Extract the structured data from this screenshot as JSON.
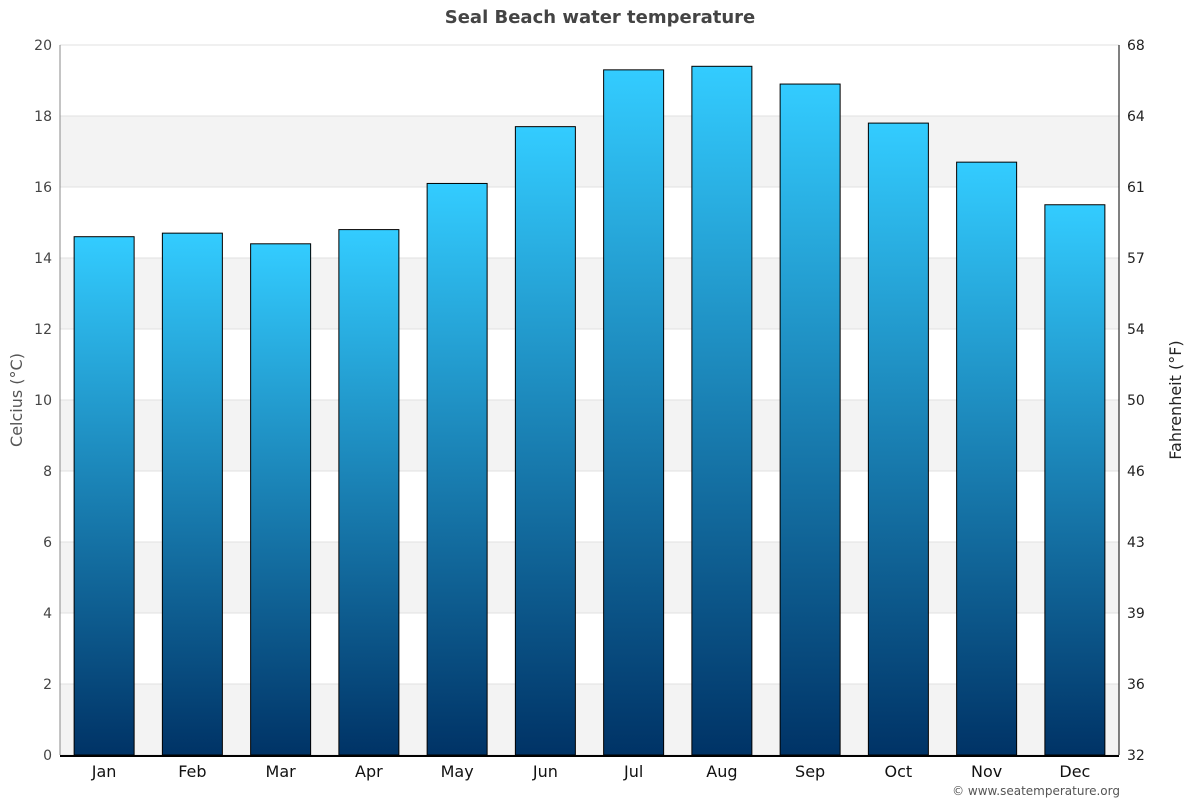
{
  "chart_data": {
    "type": "bar",
    "title": "Seal Beach water temperature",
    "categories": [
      "Jan",
      "Feb",
      "Mar",
      "Apr",
      "May",
      "Jun",
      "Jul",
      "Aug",
      "Sep",
      "Oct",
      "Nov",
      "Dec"
    ],
    "values": [
      14.6,
      14.7,
      14.4,
      14.8,
      16.1,
      17.7,
      19.3,
      19.4,
      18.9,
      17.8,
      16.7,
      15.5
    ],
    "ylabel": "Celcius (°C)",
    "y2label": "Fahrenheit (°F)",
    "ylim": [
      0,
      20
    ],
    "yticks": [
      0,
      2,
      4,
      6,
      8,
      10,
      12,
      14,
      16,
      18,
      20
    ],
    "y2ticks": [
      "32",
      "36",
      "39",
      "43",
      "46",
      "50",
      "54",
      "57",
      "61",
      "64",
      "68"
    ],
    "grid": true,
    "colors": {
      "bar_top": "#33ccff",
      "bar_bottom": "#003366",
      "band": "#f3f3f3"
    }
  },
  "credit": "© www.seatemperature.org"
}
